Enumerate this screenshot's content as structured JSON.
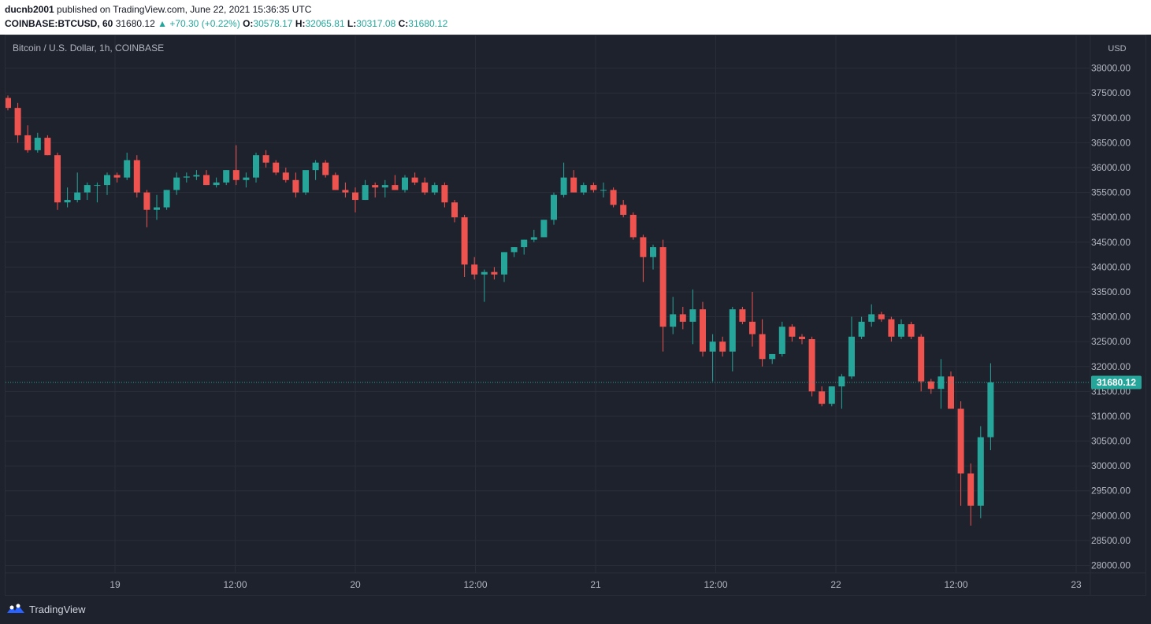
{
  "publish": {
    "author": "ducnb2001",
    "text": "published on TradingView.com, June 22, 2021 15:36:35 UTC"
  },
  "ohlc": {
    "symbol": "COINBASE:BTCUSD, 60",
    "last": "31680.12",
    "change": "▲ +70.30 (+0.22%)",
    "o_label": "O:",
    "o": "30578.17",
    "h_label": "H:",
    "h": "32065.81",
    "l_label": "L:",
    "l": "30317.08",
    "c_label": "C:",
    "c": "31680.12"
  },
  "chart_title": "Bitcoin / U.S. Dollar, 1h, COINBASE",
  "currency": "USD",
  "last_price_label": "31680.12",
  "brand": {
    "name": "TradingView",
    "icon": "tradingview-logo-icon"
  },
  "colors": {
    "up": "#26a69a",
    "down": "#ef5350",
    "background": "#1e222d",
    "grid": "#2a2e39",
    "axis_text": "#b2b5be"
  },
  "chart_data": {
    "type": "candlestick",
    "title": "Bitcoin / U.S. Dollar, 1h, COINBASE",
    "interval": "1h",
    "ylim": [
      27850,
      38500
    ],
    "y_ticks": [
      "38000.00",
      "37500.00",
      "37000.00",
      "36500.00",
      "36000.00",
      "35500.00",
      "35000.00",
      "34500.00",
      "34000.00",
      "33500.00",
      "33000.00",
      "32500.00",
      "32000.00",
      "31500.00",
      "31000.00",
      "30500.00",
      "30000.00",
      "29500.00",
      "29000.00",
      "28500.00",
      "28000.00"
    ],
    "x_ticks": [
      "19",
      "12:00",
      "20",
      "12:00",
      "21",
      "12:00",
      "22",
      "12:00",
      "23"
    ],
    "current_price": 31680.12,
    "candles": [
      {
        "o": 37400,
        "h": 37450,
        "l": 37150,
        "c": 37200
      },
      {
        "o": 37200,
        "h": 37300,
        "l": 36500,
        "c": 36650
      },
      {
        "o": 36650,
        "h": 36850,
        "l": 36300,
        "c": 36350
      },
      {
        "o": 36350,
        "h": 36700,
        "l": 36300,
        "c": 36600
      },
      {
        "o": 36600,
        "h": 36650,
        "l": 36250,
        "c": 36250
      },
      {
        "o": 36250,
        "h": 36300,
        "l": 35150,
        "c": 35300
      },
      {
        "o": 35300,
        "h": 35600,
        "l": 35200,
        "c": 35350
      },
      {
        "o": 35350,
        "h": 35900,
        "l": 35300,
        "c": 35500
      },
      {
        "o": 35500,
        "h": 35700,
        "l": 35350,
        "c": 35650
      },
      {
        "o": 35650,
        "h": 35700,
        "l": 35300,
        "c": 35650
      },
      {
        "o": 35650,
        "h": 35900,
        "l": 35450,
        "c": 35850
      },
      {
        "o": 35850,
        "h": 35900,
        "l": 35700,
        "c": 35800
      },
      {
        "o": 35800,
        "h": 36300,
        "l": 35750,
        "c": 36150
      },
      {
        "o": 36150,
        "h": 36250,
        "l": 35400,
        "c": 35500
      },
      {
        "o": 35500,
        "h": 35550,
        "l": 34800,
        "c": 35150
      },
      {
        "o": 35150,
        "h": 35450,
        "l": 34950,
        "c": 35200
      },
      {
        "o": 35200,
        "h": 35550,
        "l": 35150,
        "c": 35550
      },
      {
        "o": 35550,
        "h": 35900,
        "l": 35450,
        "c": 35800
      },
      {
        "o": 35800,
        "h": 35900,
        "l": 35700,
        "c": 35820
      },
      {
        "o": 35820,
        "h": 35950,
        "l": 35750,
        "c": 35850
      },
      {
        "o": 35850,
        "h": 35950,
        "l": 35650,
        "c": 35650
      },
      {
        "o": 35650,
        "h": 35800,
        "l": 35600,
        "c": 35700
      },
      {
        "o": 35700,
        "h": 35950,
        "l": 35650,
        "c": 35950
      },
      {
        "o": 35950,
        "h": 36450,
        "l": 35650,
        "c": 35750
      },
      {
        "o": 35750,
        "h": 35900,
        "l": 35600,
        "c": 35800
      },
      {
        "o": 35800,
        "h": 36300,
        "l": 35700,
        "c": 36250
      },
      {
        "o": 36250,
        "h": 36350,
        "l": 36000,
        "c": 36100
      },
      {
        "o": 36100,
        "h": 36150,
        "l": 35850,
        "c": 35900
      },
      {
        "o": 35900,
        "h": 36000,
        "l": 35700,
        "c": 35750
      },
      {
        "o": 35750,
        "h": 35900,
        "l": 35400,
        "c": 35500
      },
      {
        "o": 35500,
        "h": 35900,
        "l": 35450,
        "c": 35950
      },
      {
        "o": 35950,
        "h": 36150,
        "l": 35750,
        "c": 36100
      },
      {
        "o": 36100,
        "h": 36150,
        "l": 35800,
        "c": 35850
      },
      {
        "o": 35850,
        "h": 35900,
        "l": 35550,
        "c": 35550
      },
      {
        "o": 35550,
        "h": 35700,
        "l": 35400,
        "c": 35500
      },
      {
        "o": 35500,
        "h": 35600,
        "l": 35100,
        "c": 35350
      },
      {
        "o": 35350,
        "h": 35750,
        "l": 35350,
        "c": 35650
      },
      {
        "o": 35650,
        "h": 35700,
        "l": 35400,
        "c": 35600
      },
      {
        "o": 35600,
        "h": 35750,
        "l": 35400,
        "c": 35650
      },
      {
        "o": 35650,
        "h": 35850,
        "l": 35550,
        "c": 35550
      },
      {
        "o": 35550,
        "h": 35850,
        "l": 35500,
        "c": 35800
      },
      {
        "o": 35800,
        "h": 35900,
        "l": 35650,
        "c": 35700
      },
      {
        "o": 35700,
        "h": 35800,
        "l": 35450,
        "c": 35500
      },
      {
        "o": 35500,
        "h": 35700,
        "l": 35450,
        "c": 35650
      },
      {
        "o": 35650,
        "h": 35700,
        "l": 35200,
        "c": 35300
      },
      {
        "o": 35300,
        "h": 35350,
        "l": 34900,
        "c": 35000
      },
      {
        "o": 35000,
        "h": 35050,
        "l": 33800,
        "c": 34050
      },
      {
        "o": 34050,
        "h": 34200,
        "l": 33750,
        "c": 33850
      },
      {
        "o": 33850,
        "h": 33950,
        "l": 33300,
        "c": 33900
      },
      {
        "o": 33900,
        "h": 34000,
        "l": 33750,
        "c": 33850
      },
      {
        "o": 33850,
        "h": 34300,
        "l": 33700,
        "c": 34300
      },
      {
        "o": 34300,
        "h": 34400,
        "l": 34200,
        "c": 34400
      },
      {
        "o": 34400,
        "h": 34550,
        "l": 34250,
        "c": 34550
      },
      {
        "o": 34550,
        "h": 34750,
        "l": 34500,
        "c": 34600
      },
      {
        "o": 34600,
        "h": 34950,
        "l": 34600,
        "c": 34950
      },
      {
        "o": 34950,
        "h": 35500,
        "l": 34850,
        "c": 35450
      },
      {
        "o": 35450,
        "h": 36100,
        "l": 35400,
        "c": 35800
      },
      {
        "o": 35800,
        "h": 35950,
        "l": 35500,
        "c": 35500
      },
      {
        "o": 35500,
        "h": 35700,
        "l": 35450,
        "c": 35650
      },
      {
        "o": 35650,
        "h": 35700,
        "l": 35500,
        "c": 35550
      },
      {
        "o": 35550,
        "h": 35700,
        "l": 35400,
        "c": 35550
      },
      {
        "o": 35550,
        "h": 35600,
        "l": 35200,
        "c": 35250
      },
      {
        "o": 35250,
        "h": 35350,
        "l": 35000,
        "c": 35050
      },
      {
        "o": 35050,
        "h": 35100,
        "l": 34550,
        "c": 34600
      },
      {
        "o": 34600,
        "h": 34650,
        "l": 33700,
        "c": 34200
      },
      {
        "o": 34200,
        "h": 34450,
        "l": 33950,
        "c": 34400
      },
      {
        "o": 34400,
        "h": 34550,
        "l": 32300,
        "c": 32800
      },
      {
        "o": 32800,
        "h": 33400,
        "l": 32650,
        "c": 33050
      },
      {
        "o": 33050,
        "h": 33200,
        "l": 32750,
        "c": 32900
      },
      {
        "o": 32900,
        "h": 33550,
        "l": 32450,
        "c": 33150
      },
      {
        "o": 33150,
        "h": 33300,
        "l": 32200,
        "c": 32300
      },
      {
        "o": 32300,
        "h": 32650,
        "l": 31700,
        "c": 32500
      },
      {
        "o": 32500,
        "h": 32600,
        "l": 32200,
        "c": 32300
      },
      {
        "o": 32300,
        "h": 33200,
        "l": 31900,
        "c": 33150
      },
      {
        "o": 33150,
        "h": 33200,
        "l": 32850,
        "c": 32900
      },
      {
        "o": 32900,
        "h": 33500,
        "l": 32400,
        "c": 32650
      },
      {
        "o": 32650,
        "h": 32950,
        "l": 32000,
        "c": 32150
      },
      {
        "o": 32150,
        "h": 32250,
        "l": 32050,
        "c": 32250
      },
      {
        "o": 32250,
        "h": 32900,
        "l": 32200,
        "c": 32800
      },
      {
        "o": 32800,
        "h": 32850,
        "l": 32500,
        "c": 32600
      },
      {
        "o": 32600,
        "h": 32650,
        "l": 32450,
        "c": 32550
      },
      {
        "o": 32550,
        "h": 32600,
        "l": 31400,
        "c": 31500
      },
      {
        "o": 31500,
        "h": 31600,
        "l": 31200,
        "c": 31250
      },
      {
        "o": 31250,
        "h": 31600,
        "l": 31200,
        "c": 31600
      },
      {
        "o": 31600,
        "h": 31850,
        "l": 31150,
        "c": 31800
      },
      {
        "o": 31800,
        "h": 33000,
        "l": 31750,
        "c": 32600
      },
      {
        "o": 32600,
        "h": 33000,
        "l": 32550,
        "c": 32900
      },
      {
        "o": 32900,
        "h": 33250,
        "l": 32800,
        "c": 33050
      },
      {
        "o": 33050,
        "h": 33100,
        "l": 32900,
        "c": 32950
      },
      {
        "o": 32950,
        "h": 33000,
        "l": 32500,
        "c": 32600
      },
      {
        "o": 32600,
        "h": 32950,
        "l": 32550,
        "c": 32850
      },
      {
        "o": 32850,
        "h": 32900,
        "l": 32550,
        "c": 32600
      },
      {
        "o": 32600,
        "h": 32650,
        "l": 31500,
        "c": 31700
      },
      {
        "o": 31700,
        "h": 31750,
        "l": 31450,
        "c": 31550
      },
      {
        "o": 31550,
        "h": 32150,
        "l": 31150,
        "c": 31800
      },
      {
        "o": 31800,
        "h": 31900,
        "l": 31150,
        "c": 31150
      },
      {
        "o": 31150,
        "h": 31300,
        "l": 29200,
        "c": 29850
      },
      {
        "o": 29850,
        "h": 30050,
        "l": 28800,
        "c": 29200
      },
      {
        "o": 29200,
        "h": 30800,
        "l": 28950,
        "c": 30578.17
      },
      {
        "o": 30578.17,
        "h": 32065.81,
        "l": 30317.08,
        "c": 31680.12
      }
    ]
  }
}
